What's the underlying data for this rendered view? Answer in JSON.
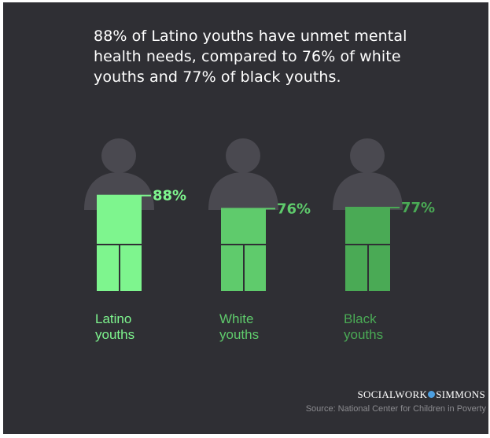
{
  "chart_data": {
    "type": "bar",
    "title": "88% of Latino youths have unmet mental health needs, compared to 76% of white youths and 77% of black youths.",
    "categories": [
      "Latino youths",
      "White youths",
      "Black youths"
    ],
    "category_lines": [
      [
        "Latino",
        "youths"
      ],
      [
        "White",
        "youths"
      ],
      [
        "Black",
        "youths"
      ]
    ],
    "values": [
      88,
      76,
      77
    ],
    "value_labels": [
      "88%",
      "76%",
      "77%"
    ],
    "unit": "%",
    "ylim": [
      0,
      100
    ],
    "colors": [
      "#7ef58e",
      "#5fcb6c",
      "#4aaa55"
    ],
    "silhouette_color": "#4a4950"
  },
  "brand": {
    "left": "SOCIALWORK",
    "right": "SIMMONS"
  },
  "source": "Source: National Center for Children in Poverty"
}
